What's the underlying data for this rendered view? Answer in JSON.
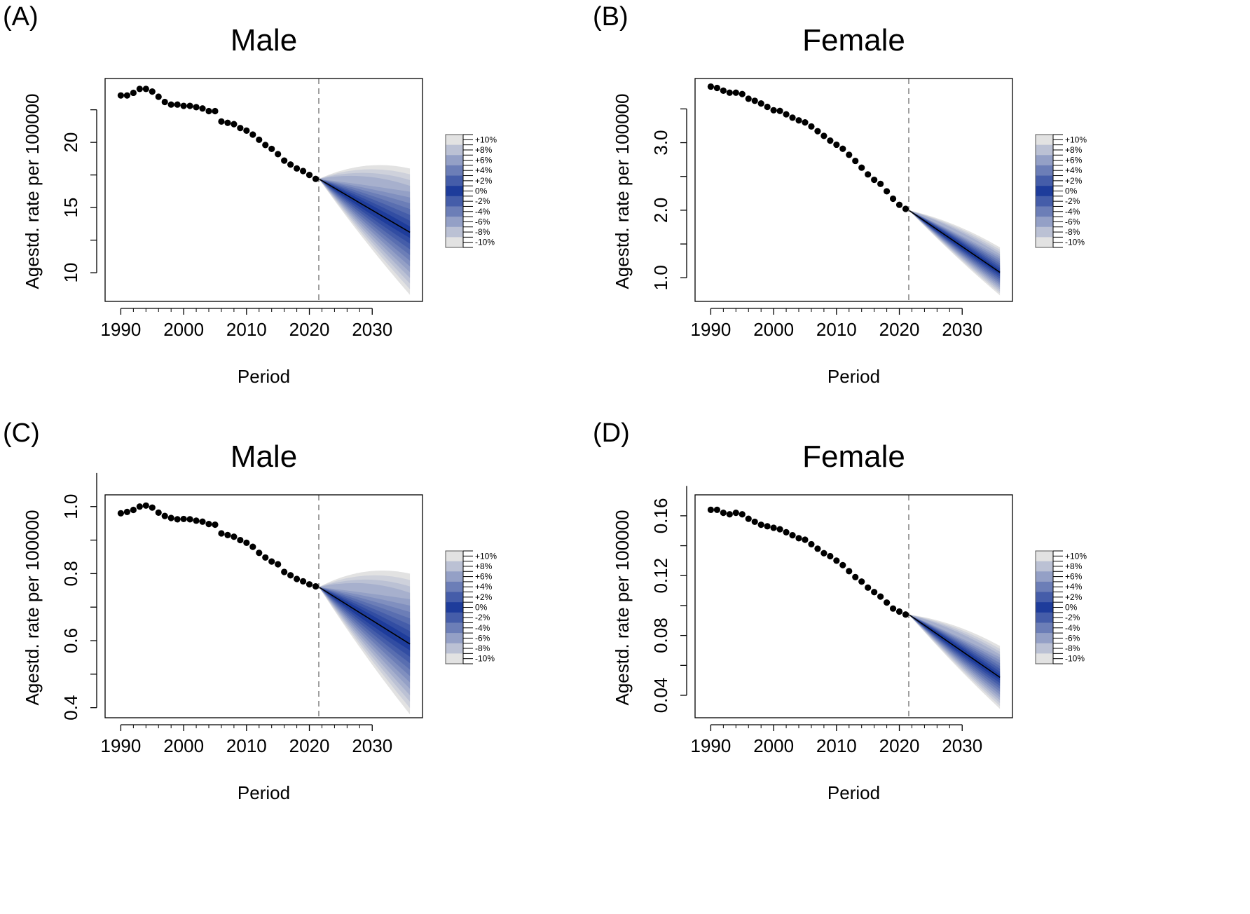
{
  "colors": {
    "band_light": "#e2e2e2",
    "band_dark": "#1e3c9b",
    "point": "#000000",
    "forecast_line": "#000000",
    "divider": "#8a8a8a",
    "frame": "#000000"
  },
  "chart_data": [
    {
      "panel_label": "(A)",
      "title": "Male",
      "type": "line",
      "xlabel": "Period",
      "ylabel": "Agestd. rate per 100000",
      "xlim": [
        1987.5,
        2038
      ],
      "ylim": [
        7.8,
        24.9
      ],
      "xticks": [
        "1990",
        "2000",
        "2010",
        "2020",
        "2030"
      ],
      "yticks": [
        "10",
        "15",
        "20"
      ],
      "observed": {
        "x": [
          1990,
          1991,
          1992,
          1993,
          1994,
          1995,
          1996,
          1997,
          1998,
          1999,
          2000,
          2001,
          2002,
          2003,
          2004,
          2005,
          2006,
          2007,
          2008,
          2009,
          2010,
          2011,
          2012,
          2013,
          2014,
          2015,
          2016,
          2017,
          2018,
          2019,
          2020,
          2021
        ],
        "y": [
          23.6,
          23.6,
          23.8,
          24.1,
          24.1,
          23.9,
          23.5,
          23.1,
          22.9,
          22.9,
          22.8,
          22.8,
          22.7,
          22.6,
          22.4,
          22.4,
          21.6,
          21.5,
          21.4,
          21.1,
          20.9,
          20.6,
          20.2,
          19.8,
          19.5,
          19.1,
          18.6,
          18.3,
          18.0,
          17.8,
          17.5,
          17.2
        ]
      },
      "forecast": {
        "x": [
          2021.5,
          2036
        ],
        "mean": [
          17.2,
          13.1
        ],
        "upper_max": [
          17.2,
          18.0
        ],
        "lower_min": [
          17.2,
          8.3
        ]
      },
      "divider_x": 2021.5,
      "legend": [
        "+10%",
        "+8%",
        "+6%",
        "+4%",
        "+2%",
        "0%",
        "-2%",
        "-4%",
        "-6%",
        "-8%",
        "-10%"
      ]
    },
    {
      "panel_label": "(B)",
      "title": "Female",
      "type": "line",
      "xlabel": "Period",
      "ylabel": "Agestd. rate per 100000",
      "xlim": [
        1987.5,
        2038
      ],
      "ylim": [
        0.65,
        3.95
      ],
      "xticks": [
        "1990",
        "2000",
        "2010",
        "2020",
        "2030"
      ],
      "yticks": [
        "1.0",
        "2.0",
        "3.0"
      ],
      "observed": {
        "x": [
          1990,
          1991,
          1992,
          1993,
          1994,
          1995,
          1996,
          1997,
          1998,
          1999,
          2000,
          2001,
          2002,
          2003,
          2004,
          2005,
          2006,
          2007,
          2008,
          2009,
          2010,
          2011,
          2012,
          2013,
          2014,
          2015,
          2016,
          2017,
          2018,
          2019,
          2020,
          2021
        ],
        "y": [
          3.83,
          3.81,
          3.77,
          3.74,
          3.74,
          3.72,
          3.65,
          3.62,
          3.58,
          3.53,
          3.48,
          3.47,
          3.42,
          3.37,
          3.33,
          3.3,
          3.24,
          3.17,
          3.1,
          3.03,
          2.97,
          2.91,
          2.82,
          2.73,
          2.63,
          2.53,
          2.45,
          2.39,
          2.28,
          2.17,
          2.08,
          2.02
        ]
      },
      "forecast": {
        "x": [
          2021.5,
          2036
        ],
        "mean": [
          2.0,
          1.08
        ],
        "upper_max": [
          2.0,
          1.45
        ],
        "lower_min": [
          2.0,
          0.74
        ]
      },
      "divider_x": 2021.5,
      "legend": [
        "+10%",
        "+8%",
        "+6%",
        "+4%",
        "+2%",
        "0%",
        "-2%",
        "-4%",
        "-6%",
        "-8%",
        "-10%"
      ]
    },
    {
      "panel_label": "(C)",
      "title": "Male",
      "type": "line",
      "xlabel": "Period",
      "ylabel": "Agestd. rate per 100000",
      "xlim": [
        1987.5,
        2038
      ],
      "ylim": [
        0.37,
        1.035
      ],
      "xticks": [
        "1990",
        "2000",
        "2010",
        "2020",
        "2030"
      ],
      "yticks": [
        "0.4",
        "0.6",
        "0.8",
        "1.0"
      ],
      "observed": {
        "x": [
          1990,
          1991,
          1992,
          1993,
          1994,
          1995,
          1996,
          1997,
          1998,
          1999,
          2000,
          2001,
          2002,
          2003,
          2004,
          2005,
          2006,
          2007,
          2008,
          2009,
          2010,
          2011,
          2012,
          2013,
          2014,
          2015,
          2016,
          2017,
          2018,
          2019,
          2020,
          2021
        ],
        "y": [
          0.98,
          0.984,
          0.99,
          1.0,
          1.003,
          0.997,
          0.982,
          0.972,
          0.966,
          0.962,
          0.963,
          0.962,
          0.958,
          0.955,
          0.948,
          0.946,
          0.92,
          0.915,
          0.91,
          0.9,
          0.892,
          0.88,
          0.862,
          0.848,
          0.836,
          0.828,
          0.805,
          0.795,
          0.784,
          0.777,
          0.768,
          0.762
        ]
      },
      "forecast": {
        "x": [
          2021.5,
          2036
        ],
        "mean": [
          0.76,
          0.59
        ],
        "upper_max": [
          0.76,
          0.8
        ],
        "lower_min": [
          0.76,
          0.38
        ]
      },
      "divider_x": 2021.5,
      "legend": [
        "+10%",
        "+8%",
        "+6%",
        "+4%",
        "+2%",
        "0%",
        "-2%",
        "-4%",
        "-6%",
        "-8%",
        "-10%"
      ]
    },
    {
      "panel_label": "(D)",
      "title": "Female",
      "type": "line",
      "xlabel": "Period",
      "ylabel": "Agestd. rate per 100000",
      "xlim": [
        1987.5,
        2038
      ],
      "ylim": [
        0.025,
        0.174
      ],
      "xticks": [
        "1990",
        "2000",
        "2010",
        "2020",
        "2030"
      ],
      "yticks": [
        "0.04",
        "0.08",
        "0.12",
        "0.16"
      ],
      "observed": {
        "x": [
          1990,
          1991,
          1992,
          1993,
          1994,
          1995,
          1996,
          1997,
          1998,
          1999,
          2000,
          2001,
          2002,
          2003,
          2004,
          2005,
          2006,
          2007,
          2008,
          2009,
          2010,
          2011,
          2012,
          2013,
          2014,
          2015,
          2016,
          2017,
          2018,
          2019,
          2020,
          2021
        ],
        "y": [
          0.164,
          0.164,
          0.162,
          0.161,
          0.162,
          0.161,
          0.158,
          0.156,
          0.154,
          0.153,
          0.152,
          0.151,
          0.149,
          0.147,
          0.145,
          0.144,
          0.141,
          0.138,
          0.135,
          0.133,
          0.13,
          0.127,
          0.123,
          0.119,
          0.116,
          0.112,
          0.109,
          0.106,
          0.102,
          0.098,
          0.096,
          0.094
        ]
      },
      "forecast": {
        "x": [
          2021.5,
          2036
        ],
        "mean": [
          0.094,
          0.052
        ],
        "upper_max": [
          0.094,
          0.073
        ],
        "lower_min": [
          0.094,
          0.031
        ]
      },
      "divider_x": 2021.5,
      "legend": [
        "+10%",
        "+8%",
        "+6%",
        "+4%",
        "+2%",
        "0%",
        "-2%",
        "-4%",
        "-6%",
        "-8%",
        "-10%"
      ]
    }
  ]
}
